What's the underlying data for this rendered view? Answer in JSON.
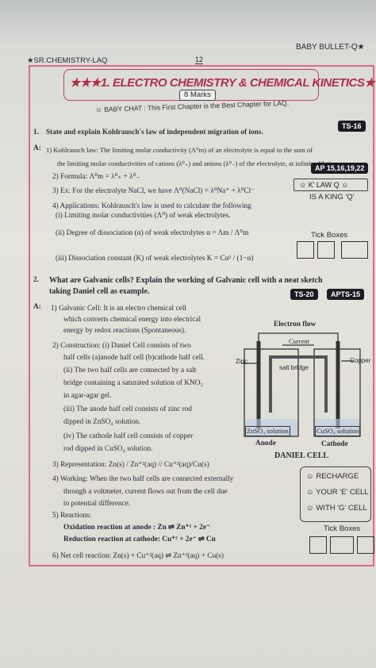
{
  "header": {
    "brand": "BABY BULLET-Q★",
    "section": "★SR.CHEMISTRY-LAQ",
    "page": "12"
  },
  "title": {
    "heading": "★★★1. ELECTRO CHEMISTRY & CHEMICAL KINETICS★★★",
    "marks": "8 Marks",
    "chat": "☺ BABY CHAT : This First Chapter is the Best Chapter for LAQ."
  },
  "q1": {
    "number": "1.",
    "question": "State and explain Kohlrausch's law of independent migration of ions.",
    "tag": "TS-16",
    "answer_label": "A:",
    "lines": [
      "1) Kohlrausch law: The limiting molar conductivity (Λ⁰m) of an electrolyte is equal to the sum of",
      "the limiting molar conductivities of cations (λ⁰₊) and anions (λ⁰₋) of the electrolyte, at infinite dilution.",
      "2) Formula: Λ⁰m = λ⁰₊ + λ⁰₋",
      "3) Ex: For the electrolyte NaCl, we have Λ⁰(NaCl) = λ⁰Na⁺ + λ⁰Cl⁻",
      "4) Applications: Kohlrausch's law is used to calculate the following",
      "(i) Limiting molar conductivities (Λ⁰) of weak electrolytes.",
      "(ii) Degree of dissociation (α) of weak electrolytes  α = Λm / Λ⁰m",
      "(iii) Dissociation constant (K) of weak electrolytes  K = Cα² / (1−α)"
    ],
    "tag2": "AP 15,16,19,22",
    "notes": [
      "☺ K' LAW Q ☺",
      "IS A KING 'Q'"
    ],
    "tick": "Tick Boxes"
  },
  "q2": {
    "number": "2.",
    "question": [
      "What are Galvanic cells? Explain the working of Galvanic cell with a neat sketch",
      "taking Daniel cell as example."
    ],
    "tags": [
      "TS-20",
      "APTS-15"
    ],
    "answer_label": "A:",
    "lines": [
      "1) Galvanic Cell: It is an electro chemical cell",
      "which converts chemical energy into electrical",
      "energy by redox reactions (Spontaneous).",
      "2) Construction: (i) Daniel Cell consists of two",
      "half cells (a)anode half cell (b)cathode half cell.",
      "(ii) The two half cells are connected by a salt",
      "bridge containing a saturated solution of KNO₃",
      "in agar-agar gel.",
      "(iii) The anode half cell consists of zinc rod",
      "dipped in ZnSO₄ solution.",
      "(iv) The cathode half cell consists of copper",
      "rod dipped in CuSO₄ solution.",
      "3) Representation: Zn(s) / Zn⁺²(aq) // Cu⁺²(aq)/Cu(s)",
      "4) Working: When the two half cells are connected externally",
      "through a voltmeter, current flows out from the cell due",
      "to potential difference.",
      "5) Reactions:",
      "Oxidation reaction at anode : Zn ⇌ Zn⁺² + 2e⁻",
      "Reduction reaction at cathode: Cu⁺² + 2e⁻ ⇌ Cu",
      "6) Net cell reaction: Zn(s) + Cu⁺²(aq) ⇌ Zn⁺²(aq) + Cu(s)"
    ],
    "diagram": {
      "labels": [
        "Electron flow",
        "Current",
        "Zinc",
        "salt bridge",
        "Copper",
        "ZnSO₄ solution",
        "CuSO₄ solution",
        "Anode",
        "Cathode"
      ],
      "caption": "DANIEL CELL"
    },
    "notes": [
      "☺ RECHARGE",
      "☺ YOUR 'E' CELL",
      "☺ WITH 'G' CELL"
    ],
    "tick": "Tick Boxes"
  }
}
